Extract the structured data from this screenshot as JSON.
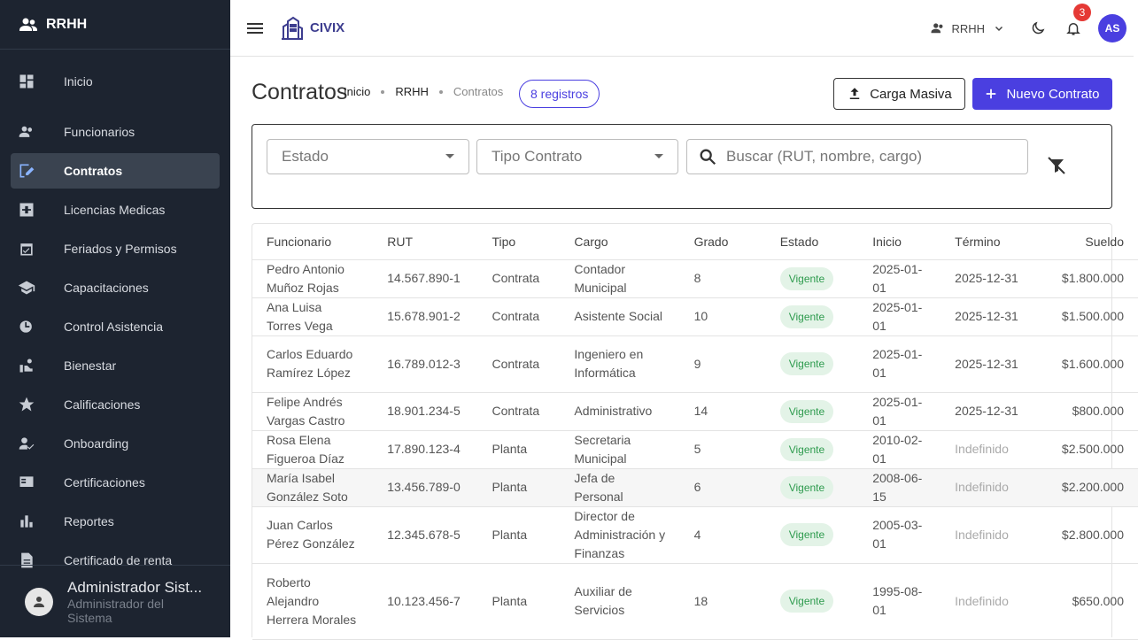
{
  "sidebar": {
    "title": "RRHH",
    "items": [
      {
        "label": "Inicio",
        "icon": "dashboard-icon"
      },
      {
        "label": "Funcionarios",
        "icon": "people-icon"
      },
      {
        "label": "Contratos",
        "icon": "contract-icon",
        "active": true
      },
      {
        "label": "Licencias Medicas",
        "icon": "medical-icon"
      },
      {
        "label": "Feriados y Permisos",
        "icon": "calendar-check-icon"
      },
      {
        "label": "Capacitaciones",
        "icon": "school-icon"
      },
      {
        "label": "Control Asistencia",
        "icon": "attendance-icon"
      },
      {
        "label": "Bienestar",
        "icon": "wellbeing-icon"
      },
      {
        "label": "Calificaciones",
        "icon": "star-icon"
      },
      {
        "label": "Onboarding",
        "icon": "person-check-icon"
      },
      {
        "label": "Certificaciones",
        "icon": "certificate-icon"
      },
      {
        "label": "Reportes",
        "icon": "bar-chart-icon"
      },
      {
        "label": "Certificado de renta",
        "icon": "document-icon"
      }
    ],
    "user": {
      "name": "Administrador Sist...",
      "role": "Administrador del Sistema"
    }
  },
  "topbar": {
    "brand": "CIVIX",
    "module": "RRHH",
    "notifications": "3",
    "avatar": "AS"
  },
  "header": {
    "title": "Contratos",
    "breadcrumbs": [
      "Inicio",
      "RRHH",
      "Contratos"
    ],
    "records_chip": "8 registros",
    "bulk_button": "Carga Masiva",
    "new_button": "Nuevo Contrato"
  },
  "filters": {
    "estado_label": "Estado",
    "tipo_label": "Tipo Contrato",
    "search_placeholder": "Buscar (RUT, nombre, cargo)"
  },
  "table": {
    "columns": [
      "Funcionario",
      "RUT",
      "Tipo",
      "Cargo",
      "Grado",
      "Estado",
      "Inicio",
      "Término",
      "Sueldo"
    ],
    "rows": [
      {
        "funcionario": "Pedro Antonio Muñoz Rojas",
        "rut": "14.567.890-1",
        "tipo": "Contrata",
        "cargo": "Contador Municipal",
        "grado": "8",
        "estado": "Vigente",
        "inicio": "2025-01-01",
        "termino": "2025-12-31",
        "sueldo": "$1.800.000"
      },
      {
        "funcionario": "Ana Luisa Torres Vega",
        "rut": "15.678.901-2",
        "tipo": "Contrata",
        "cargo": "Asistente Social",
        "grado": "10",
        "estado": "Vigente",
        "inicio": "2025-01-01",
        "termino": "2025-12-31",
        "sueldo": "$1.500.000"
      },
      {
        "funcionario": "Carlos Eduardo Ramírez López",
        "rut": "16.789.012-3",
        "tipo": "Contrata",
        "cargo": "Ingeniero en Informática",
        "grado": "9",
        "estado": "Vigente",
        "inicio": "2025-01-01",
        "termino": "2025-12-31",
        "sueldo": "$1.600.000"
      },
      {
        "funcionario": "Felipe Andrés Vargas Castro",
        "rut": "18.901.234-5",
        "tipo": "Contrata",
        "cargo": "Administrativo",
        "grado": "14",
        "estado": "Vigente",
        "inicio": "2025-01-01",
        "termino": "2025-12-31",
        "sueldo": "$800.000"
      },
      {
        "funcionario": "Rosa Elena Figueroa Díaz",
        "rut": "17.890.123-4",
        "tipo": "Planta",
        "cargo": "Secretaria Municipal",
        "grado": "5",
        "estado": "Vigente",
        "inicio": "2010-02-01",
        "termino": "Indefinido",
        "sueldo": "$2.500.000"
      },
      {
        "funcionario": "María Isabel González Soto",
        "rut": "13.456.789-0",
        "tipo": "Planta",
        "cargo": "Jefa de Personal",
        "grado": "6",
        "estado": "Vigente",
        "inicio": "2008-06-15",
        "termino": "Indefinido",
        "sueldo": "$2.200.000"
      },
      {
        "funcionario": "Juan Carlos Pérez González",
        "rut": "12.345.678-5",
        "tipo": "Planta",
        "cargo": "Director de Administración y Finanzas",
        "grado": "4",
        "estado": "Vigente",
        "inicio": "2005-03-01",
        "termino": "Indefinido",
        "sueldo": "$2.800.000"
      },
      {
        "funcionario": "Roberto Alejandro Herrera Morales",
        "rut": "10.123.456-7",
        "tipo": "Planta",
        "cargo": "Auxiliar de Servicios",
        "grado": "18",
        "estado": "Vigente",
        "inicio": "1995-08-01",
        "termino": "Indefinido",
        "sueldo": "$650.000"
      }
    ]
  },
  "colors": {
    "sidebar_bg": "#1d2430",
    "primary": "#4a3fe0",
    "status_green": "#2e9b4e"
  }
}
